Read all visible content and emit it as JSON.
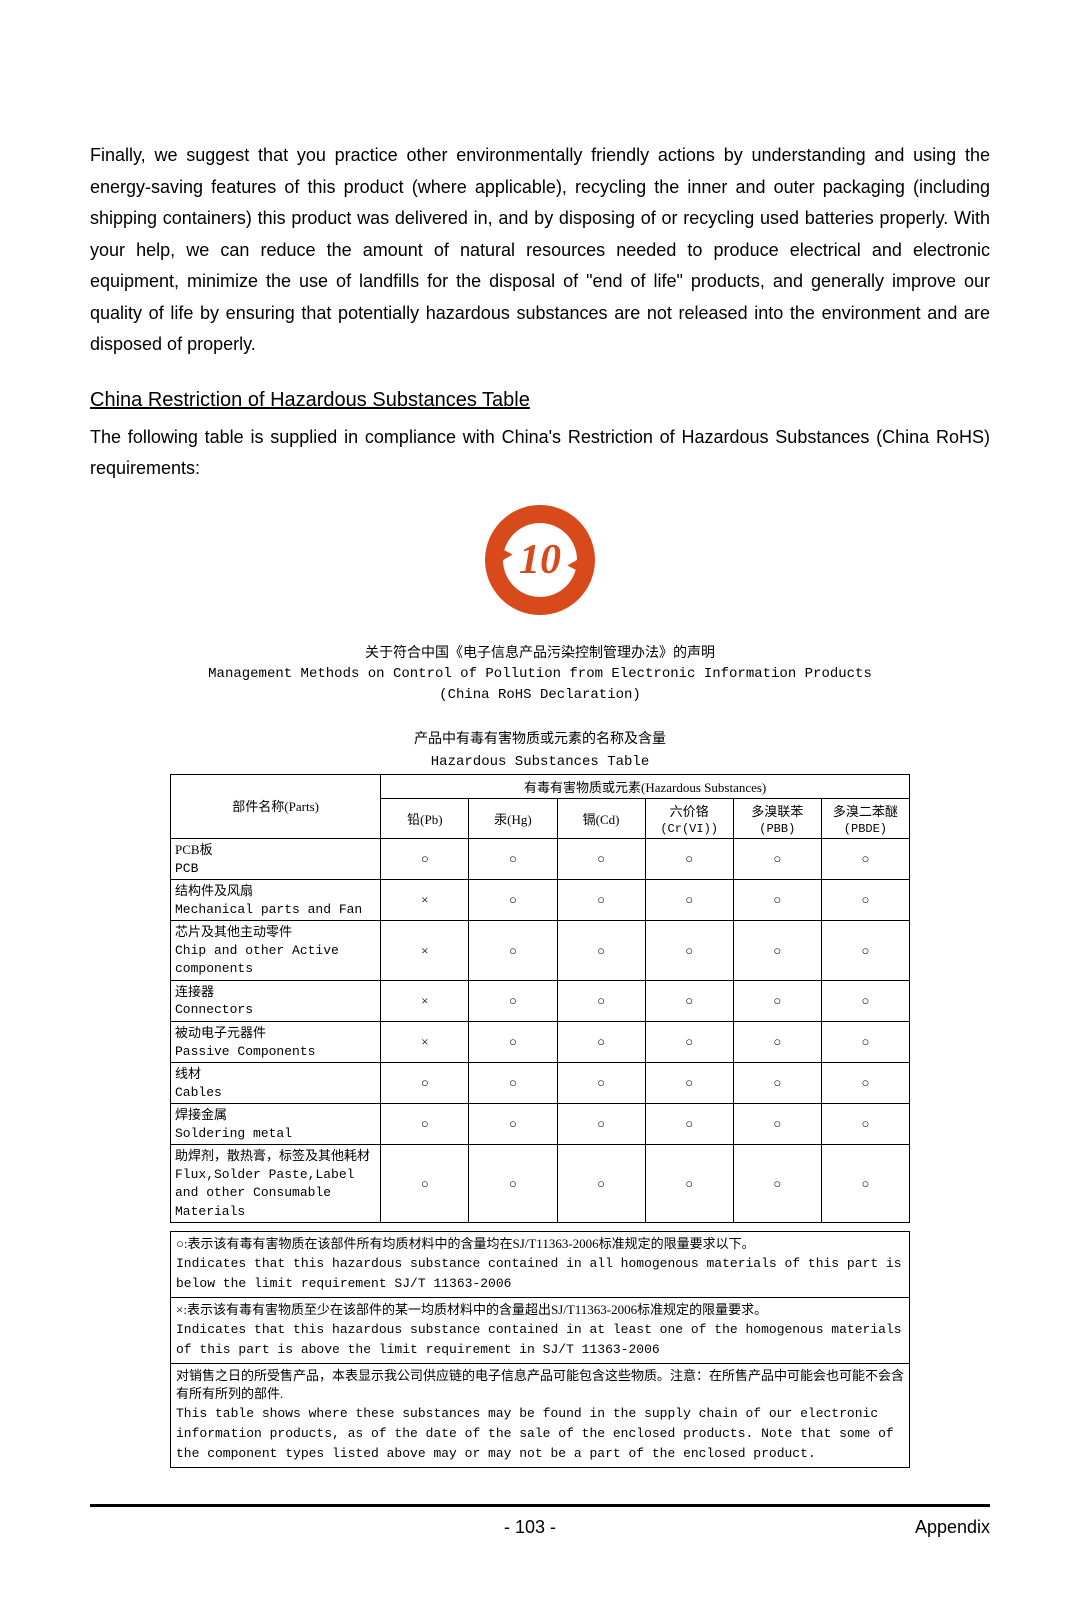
{
  "paragraph1": "Finally, we suggest that you practice other environmentally friendly actions by understanding and using the energy-saving features of this product (where applicable), recycling the inner and outer packaging (including shipping containers) this product was delivered in, and by disposing of or recycling used batteries properly. With your help, we can reduce the amount of natural resources needed to produce electrical and electronic equipment, minimize the use of landfills for the disposal of \"end of life\" products, and generally improve our quality of life by ensuring that potentially hazardous substances are not released into the environment and are disposed of properly.",
  "section_title": "China Restriction of Hazardous Substances Table",
  "paragraph2": "The following table is supplied in compliance with China's Restriction of Hazardous Substances (China RoHS) requirements:",
  "logo_number": "10",
  "declaration": {
    "line1_cn": "关于符合中国《电子信息产品污染控制管理办法》的声明",
    "line2_en": "Management Methods on Control of Pollution from Electronic Information Products",
    "line3_en": "(China RoHS Declaration)"
  },
  "table_title": {
    "cn": "产品中有毒有害物质或元素的名称及含量",
    "en": "Hazardous Substances Table"
  },
  "table": {
    "parts_header": "部件名称(Parts)",
    "haz_header": "有毒有害物质或元素(Hazardous Substances)",
    "columns": [
      {
        "l1": "铅(Pb)",
        "l2": ""
      },
      {
        "l1": "汞(Hg)",
        "l2": ""
      },
      {
        "l1": "镉(Cd)",
        "l2": ""
      },
      {
        "l1": "六价铬",
        "l2": "(Cr(VI))"
      },
      {
        "l1": "多溴联苯",
        "l2": "(PBB)"
      },
      {
        "l1": "多溴二苯醚",
        "l2": "(PBDE)"
      }
    ],
    "rows": [
      {
        "cn": "PCB板",
        "en": "PCB",
        "v": [
          "○",
          "○",
          "○",
          "○",
          "○",
          "○"
        ]
      },
      {
        "cn": "结构件及风扇",
        "en": "Mechanical parts and Fan",
        "v": [
          "×",
          "○",
          "○",
          "○",
          "○",
          "○"
        ]
      },
      {
        "cn": "芯片及其他主动零件",
        "en": "Chip and other Active components",
        "v": [
          "×",
          "○",
          "○",
          "○",
          "○",
          "○"
        ]
      },
      {
        "cn": "连接器",
        "en": "Connectors",
        "v": [
          "×",
          "○",
          "○",
          "○",
          "○",
          "○"
        ]
      },
      {
        "cn": "被动电子元器件",
        "en": "Passive Components",
        "v": [
          "×",
          "○",
          "○",
          "○",
          "○",
          "○"
        ]
      },
      {
        "cn": "线材",
        "en": "Cables",
        "v": [
          "○",
          "○",
          "○",
          "○",
          "○",
          "○"
        ]
      },
      {
        "cn": "焊接金属",
        "en": "Soldering metal",
        "v": [
          "○",
          "○",
          "○",
          "○",
          "○",
          "○"
        ]
      },
      {
        "cn": "助焊剂，散热膏，标签及其他耗材",
        "en": "Flux,Solder Paste,Label and other Consumable Materials",
        "v": [
          "○",
          "○",
          "○",
          "○",
          "○",
          "○"
        ]
      }
    ]
  },
  "notes": {
    "n1_cn": "○:表示该有毒有害物质在该部件所有均质材料中的含量均在SJ/T11363-2006标准规定的限量要求以下。",
    "n1_en": "Indicates that this hazardous substance contained in all homogenous materials of this part is below the limit requirement SJ/T 11363-2006",
    "n2_cn": "×:表示该有毒有害物质至少在该部件的某一均质材料中的含量超出SJ/T11363-2006标准规定的限量要求。",
    "n2_en": "Indicates that this hazardous substance contained in at least one of the homogenous materials of this part is above the limit requirement in SJ/T 11363-2006",
    "n3_cn": "对销售之日的所受售产品，本表显示我公司供应链的电子信息产品可能包含这些物质。注意：在所售产品中可能会也可能不会含有所有所列的部件.",
    "n3_en": "This table shows where these substances may be found in the supply chain of our electronic information products, as of the date of the sale of the enclosed products. Note that some of the component types listed above may or may not be a part of the enclosed product."
  },
  "footer": {
    "page": "- 103 -",
    "label": "Appendix"
  }
}
